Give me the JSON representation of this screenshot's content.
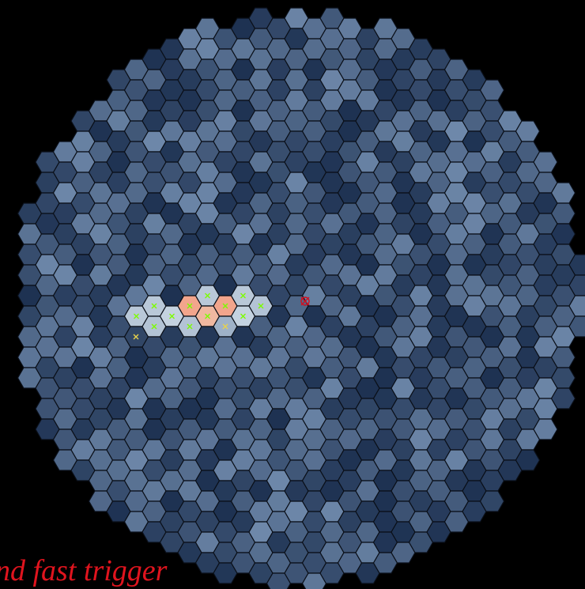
{
  "caption": "nd fast trigger"
}
